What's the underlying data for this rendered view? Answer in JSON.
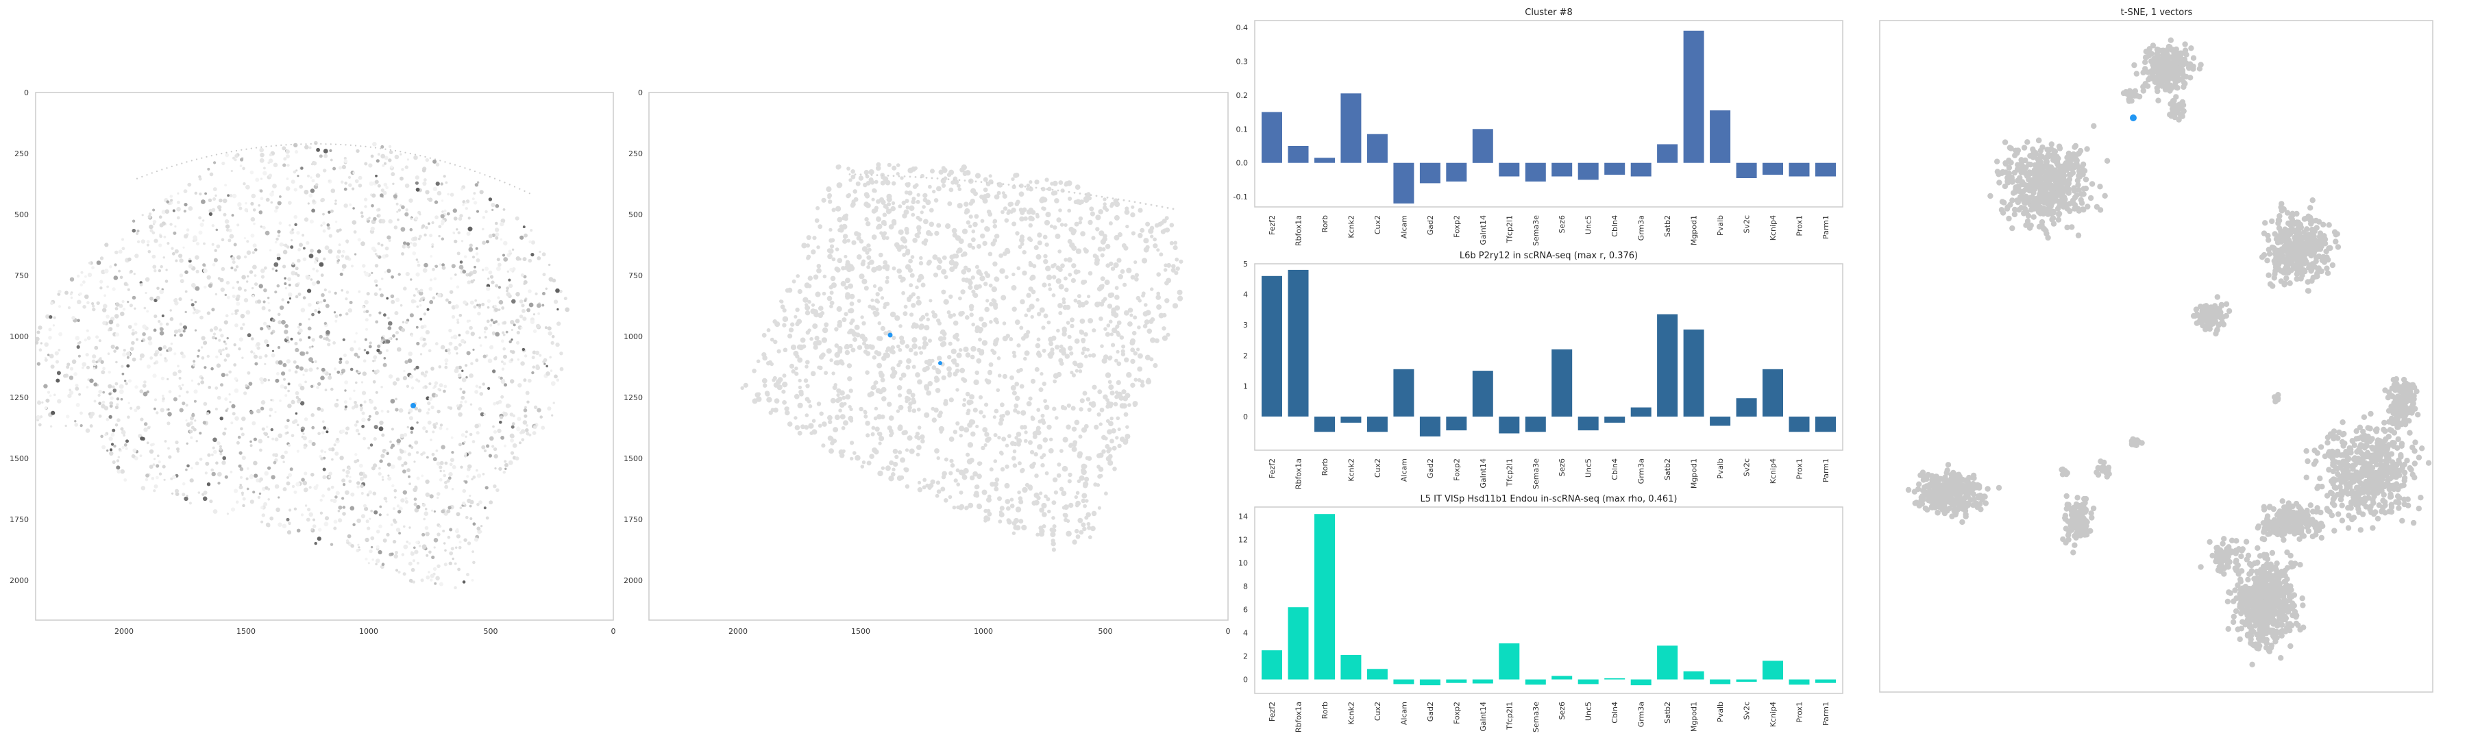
{
  "colors": {
    "cluster_bar": "#4c72b0",
    "rna_bar": "#306998",
    "rho_bar": "#0cdcc0",
    "highlight": "#2196f3",
    "dots_light": "#dddddd",
    "tsne_dots": "#c8c8c8"
  },
  "panels": {
    "image1": {
      "xticks": [
        "2000",
        "1500",
        "1000",
        "500",
        "0"
      ],
      "yticks": [
        "0",
        "250",
        "500",
        "750",
        "1000",
        "1250",
        "1500",
        "1750",
        "2000"
      ]
    },
    "image2": {
      "xticks": [
        "2000",
        "1500",
        "1000",
        "500",
        "0"
      ],
      "yticks": [
        "0",
        "250",
        "500",
        "750",
        "1000",
        "1250",
        "1500",
        "1750",
        "2000"
      ]
    },
    "tsne": {
      "title": "t-SNE, 1 vectors"
    }
  },
  "chart_data": [
    {
      "type": "bar",
      "title": "Cluster #8",
      "categories": [
        "Fezf2",
        "Rbfox1a",
        "Rorb",
        "Kcnk2",
        "Cux2",
        "Alcam",
        "Gad2",
        "Foxp2",
        "Galnt14",
        "Tfcp2l1",
        "Sema3e",
        "Sez6",
        "Unc5",
        "Cbln4",
        "Grm3a",
        "Satb2",
        "Mgpod1",
        "Pvalb",
        "Sv2c",
        "Kcnip4",
        "Prox1",
        "Parm1"
      ],
      "values": [
        0.15,
        0.05,
        0.015,
        0.205,
        0.085,
        -0.12,
        -0.06,
        -0.055,
        0.1,
        -0.04,
        -0.055,
        -0.04,
        -0.05,
        -0.035,
        -0.04,
        0.055,
        0.39,
        0.155,
        -0.045,
        -0.035,
        -0.04,
        -0.04
      ],
      "ylim": [
        -0.13,
        0.42
      ],
      "yticks": [
        "-0.1",
        "0.0",
        "0.1",
        "0.2",
        "0.3",
        "0.4"
      ]
    },
    {
      "type": "bar",
      "title": "L6b P2ry12 in scRNA-seq (max r, 0.376)",
      "categories": [
        "Fezf2",
        "Rbfox1a",
        "Rorb",
        "Kcnk2",
        "Cux2",
        "Alcam",
        "Gad2",
        "Foxp2",
        "Galnt14",
        "Tfcp2l1",
        "Sema3e",
        "Sez6",
        "Unc5",
        "Cbln4",
        "Grm3a",
        "Satb2",
        "Mgpod1",
        "Pvalb",
        "Sv2c",
        "Kcnip4",
        "Prox1",
        "Parm1"
      ],
      "values": [
        4.6,
        4.8,
        -0.5,
        -0.2,
        -0.5,
        1.55,
        -0.65,
        -0.45,
        1.5,
        -0.55,
        -0.5,
        2.2,
        -0.45,
        -0.2,
        0.3,
        3.35,
        2.85,
        -0.3,
        0.6,
        1.55,
        -0.5,
        -0.5
      ],
      "ylim": [
        -1.1,
        5.0
      ],
      "yticks": [
        "0",
        "1",
        "2",
        "3",
        "4",
        "5"
      ]
    },
    {
      "type": "bar",
      "title": "L5 IT VISp Hsd11b1 Endou in-scRNA-seq (max rho, 0.461)",
      "categories": [
        "Fezf2",
        "Rbfox1a",
        "Rorb",
        "Kcnk2",
        "Cux2",
        "Alcam",
        "Gad2",
        "Foxp2",
        "Galnt14",
        "Tfcp2l1",
        "Sema3e",
        "Sez6",
        "Unc5",
        "Cbln4",
        "Grm3a",
        "Satb2",
        "Mgpod1",
        "Pvalb",
        "Sv2c",
        "Kcnip4",
        "Prox1",
        "Parm1"
      ],
      "values": [
        2.5,
        6.2,
        14.2,
        2.1,
        0.9,
        -0.4,
        -0.5,
        -0.3,
        -0.35,
        3.1,
        -0.45,
        0.3,
        -0.4,
        0.1,
        -0.5,
        2.9,
        0.7,
        -0.4,
        -0.2,
        1.6,
        -0.45,
        -0.3
      ],
      "ylim": [
        -1.2,
        14.8
      ],
      "yticks": [
        "0",
        "2",
        "4",
        "6",
        "8",
        "10",
        "12",
        "14"
      ]
    }
  ]
}
